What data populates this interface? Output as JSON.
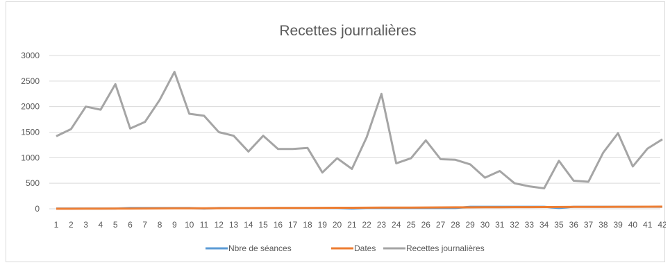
{
  "chart_data": {
    "type": "line",
    "title": "Recettes journalières",
    "xlabel": "",
    "ylabel": "",
    "ylim": [
      0,
      3000
    ],
    "yticks": [
      0,
      500,
      1000,
      1500,
      2000,
      2500,
      3000
    ],
    "grid": "horizontal",
    "legend_position": "bottom",
    "x": [
      "1",
      "2",
      "3",
      "4",
      "5",
      "6",
      "7",
      "8",
      "9",
      "10",
      "11",
      "12",
      "13",
      "14",
      "15",
      "16",
      "17",
      "18",
      "19",
      "20",
      "21",
      "22",
      "23",
      "24",
      "25",
      "26",
      "27",
      "28",
      "29",
      "30",
      "31",
      "32",
      "33",
      "34",
      "35",
      "36",
      "37",
      "38",
      "39",
      "40",
      "41",
      "42"
    ],
    "series": [
      {
        "name": "Nbre de séances",
        "color": "#5b9bd5",
        "values": [
          5,
          5,
          5,
          5,
          5,
          15,
          15,
          15,
          15,
          15,
          5,
          15,
          15,
          15,
          15,
          15,
          15,
          15,
          15,
          15,
          5,
          15,
          15,
          15,
          15,
          15,
          15,
          15,
          40,
          40,
          40,
          40,
          40,
          40,
          15,
          40,
          40,
          40,
          40,
          40,
          40,
          40
        ]
      },
      {
        "name": "Dates",
        "color": "#ed7d31",
        "values": [
          1,
          2,
          3,
          4,
          5,
          6,
          7,
          8,
          9,
          10,
          11,
          12,
          13,
          14,
          15,
          16,
          17,
          18,
          19,
          20,
          21,
          22,
          23,
          24,
          25,
          26,
          27,
          28,
          29,
          30,
          31,
          32,
          33,
          34,
          35,
          36,
          37,
          38,
          39,
          40,
          41,
          42
        ]
      },
      {
        "name": "Recettes journalières",
        "color": "#a5a5a5",
        "values": [
          1420,
          1560,
          2000,
          1940,
          2440,
          1570,
          1700,
          2130,
          2680,
          1860,
          1820,
          1500,
          1430,
          1120,
          1430,
          1170,
          1170,
          1190,
          710,
          990,
          780,
          1400,
          2250,
          890,
          990,
          1340,
          970,
          960,
          870,
          610,
          740,
          500,
          440,
          400,
          940,
          550,
          530,
          1100,
          1480,
          830,
          1180,
          1360
        ]
      }
    ]
  }
}
